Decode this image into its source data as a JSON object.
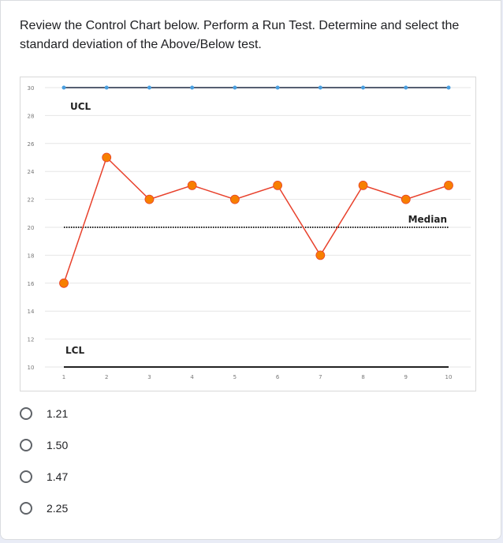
{
  "question": {
    "line1": "Review the Control Chart below. Perform a Run Test. Determine and select the",
    "line2": "standard deviation of the Above/Below test."
  },
  "chart_data": {
    "type": "line",
    "title": "",
    "x": [
      1,
      2,
      3,
      4,
      5,
      6,
      7,
      8,
      9,
      10
    ],
    "xlim": [
      1,
      10
    ],
    "ylim": [
      10,
      30
    ],
    "yticks": [
      10,
      12,
      14,
      16,
      18,
      20,
      22,
      24,
      26,
      28,
      30
    ],
    "xticks": [
      1,
      2,
      3,
      4,
      5,
      6,
      7,
      8,
      9,
      10
    ],
    "grid": true,
    "series": [
      {
        "name": "",
        "values": [
          16,
          25,
          22,
          23,
          22,
          23,
          18,
          23,
          22,
          23
        ],
        "color": "#e8412c",
        "marker": "#f77f00"
      }
    ],
    "ucl": {
      "value": 30,
      "label": "UCL",
      "color": "#1f2a44",
      "marker": "#4a9fe0"
    },
    "lcl": {
      "value": 10,
      "label": "LCL",
      "color": "#222222"
    },
    "median": {
      "value": 20,
      "label": "Median",
      "color": "#222222"
    }
  },
  "options": [
    {
      "label": "1.21"
    },
    {
      "label": "1.50"
    },
    {
      "label": "1.47"
    },
    {
      "label": "2.25"
    }
  ],
  "colors": {
    "accent": "#5f6368",
    "background": "#e9ecf6"
  }
}
